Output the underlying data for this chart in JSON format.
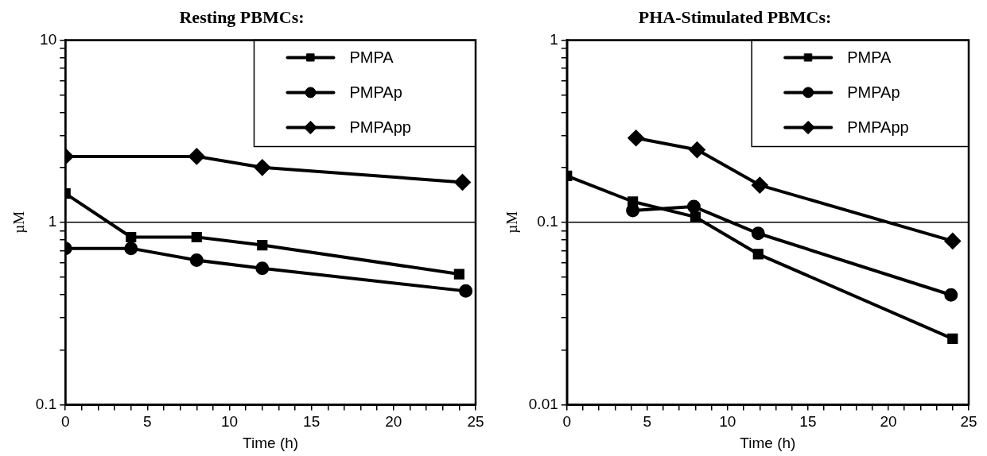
{
  "chart_data": [
    {
      "type": "line",
      "title": "Resting PBMCs:",
      "xlabel": "Time (h)",
      "ylabel": "µM",
      "log": "y",
      "grid": "y",
      "legend": "top right",
      "line_style": "solid",
      "xlim": [
        0,
        25
      ],
      "xticks": [
        0,
        {
          "value": 1,
          "label": null
        },
        {
          "value": 2,
          "label": null
        },
        {
          "value": 3,
          "label": null
        },
        {
          "value": 4,
          "label": null
        },
        5,
        {
          "value": 6,
          "label": null
        },
        {
          "value": 7,
          "label": null
        },
        {
          "value": 8,
          "label": null
        },
        {
          "value": 9,
          "label": null
        },
        10,
        {
          "value": 11,
          "label": null
        },
        {
          "value": 12,
          "label": null
        },
        {
          "value": 13,
          "label": null
        },
        {
          "value": 14,
          "label": null
        },
        15,
        {
          "value": 16,
          "label": null
        },
        {
          "value": 17,
          "label": null
        },
        {
          "value": 18,
          "label": null
        },
        {
          "value": 19,
          "label": null
        },
        20,
        {
          "value": 21,
          "label": null
        },
        {
          "value": 22,
          "label": null
        },
        {
          "value": 23,
          "label": null
        },
        {
          "value": 24,
          "label": null
        },
        25
      ],
      "ylim": [
        0.1,
        10
      ],
      "yticks": [
        0.1,
        {
          "value": 0.2,
          "label": null
        },
        {
          "value": 0.3,
          "label": null
        },
        {
          "value": 0.4,
          "label": null
        },
        {
          "value": 0.5,
          "label": null
        },
        {
          "value": 0.6,
          "label": null
        },
        {
          "value": 0.7,
          "label": null
        },
        {
          "value": 0.8,
          "label": null
        },
        {
          "value": 0.9,
          "label": null
        },
        1,
        {
          "value": 2,
          "label": null
        },
        {
          "value": 3,
          "label": null
        },
        {
          "value": 4,
          "label": null
        },
        {
          "value": 5,
          "label": null
        },
        {
          "value": 6,
          "label": null
        },
        {
          "value": 7,
          "label": null
        },
        {
          "value": 8,
          "label": null
        },
        {
          "value": 9,
          "label": null
        },
        10
      ],
      "series": [
        {
          "name": "PMPA",
          "color": "#000000",
          "marker": "square",
          "x": [
            0,
            4,
            8,
            12,
            24
          ],
          "values": [
            1.44,
            0.83,
            0.83,
            0.75,
            0.52
          ]
        },
        {
          "name": "PMPAp",
          "color": "#000000",
          "marker": "circle",
          "x": [
            0,
            4,
            8,
            12,
            24.4
          ],
          "values": [
            0.72,
            0.72,
            0.62,
            0.56,
            0.42
          ]
        },
        {
          "name": "PMPApp",
          "color": "#000000",
          "marker": "diamond",
          "x": [
            0,
            8,
            12,
            24.2
          ],
          "values": [
            2.3,
            2.3,
            2.0,
            1.66
          ]
        }
      ]
    },
    {
      "type": "line",
      "title": "PHA-Stimulated PBMCs:",
      "xlabel": "Time (h)",
      "ylabel": "µM",
      "log": "y",
      "grid": "y",
      "legend": "top right",
      "line_style": "solid",
      "xlim": [
        0,
        25
      ],
      "xticks": [
        0,
        {
          "value": 1,
          "label": null
        },
        {
          "value": 2,
          "label": null
        },
        {
          "value": 3,
          "label": null
        },
        {
          "value": 4,
          "label": null
        },
        5,
        {
          "value": 6,
          "label": null
        },
        {
          "value": 7,
          "label": null
        },
        {
          "value": 8,
          "label": null
        },
        {
          "value": 9,
          "label": null
        },
        10,
        {
          "value": 11,
          "label": null
        },
        {
          "value": 12,
          "label": null
        },
        {
          "value": 13,
          "label": null
        },
        {
          "value": 14,
          "label": null
        },
        15,
        {
          "value": 16,
          "label": null
        },
        {
          "value": 17,
          "label": null
        },
        {
          "value": 18,
          "label": null
        },
        {
          "value": 19,
          "label": null
        },
        20,
        {
          "value": 21,
          "label": null
        },
        {
          "value": 22,
          "label": null
        },
        {
          "value": 23,
          "label": null
        },
        {
          "value": 24,
          "label": null
        },
        25
      ],
      "ylim": [
        0.01,
        1
      ],
      "yticks": [
        0.01,
        {
          "value": 0.02,
          "label": null
        },
        {
          "value": 0.03,
          "label": null
        },
        {
          "value": 0.04,
          "label": null
        },
        {
          "value": 0.05,
          "label": null
        },
        {
          "value": 0.06,
          "label": null
        },
        {
          "value": 0.07,
          "label": null
        },
        {
          "value": 0.08,
          "label": null
        },
        {
          "value": 0.09,
          "label": null
        },
        0.1,
        {
          "value": 0.2,
          "label": null
        },
        {
          "value": 0.3,
          "label": null
        },
        {
          "value": 0.4,
          "label": null
        },
        {
          "value": 0.5,
          "label": null
        },
        {
          "value": 0.6,
          "label": null
        },
        {
          "value": 0.7,
          "label": null
        },
        {
          "value": 0.8,
          "label": null
        },
        {
          "value": 0.9,
          "label": null
        },
        1
      ],
      "series": [
        {
          "name": "PMPA",
          "color": "#000000",
          "marker": "square",
          "x": [
            0,
            4.1,
            8,
            11.9,
            24
          ],
          "values": [
            0.18,
            0.13,
            0.107,
            0.067,
            0.023
          ]
        },
        {
          "name": "PMPAp",
          "color": "#000000",
          "marker": "circle",
          "x": [
            4.1,
            7.9,
            11.9,
            23.9
          ],
          "values": [
            0.116,
            0.122,
            0.087,
            0.04
          ]
        },
        {
          "name": "PMPApp",
          "color": "#000000",
          "marker": "diamond",
          "x": [
            4.3,
            8.1,
            12,
            24
          ],
          "values": [
            0.29,
            0.25,
            0.16,
            0.079
          ]
        }
      ]
    }
  ]
}
